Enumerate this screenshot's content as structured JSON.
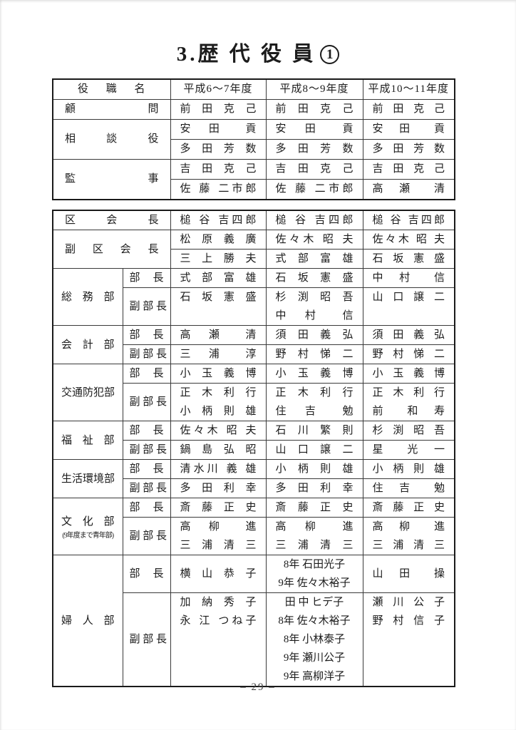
{
  "page": {
    "title_main": "3.歴 代 役 員",
    "title_number": "1",
    "page_number": "– 29 –"
  },
  "labels": {
    "bucho": "部 長",
    "fukubucho": "副 部 長"
  },
  "table1": {
    "headers": {
      "role": "役 職 名",
      "y1": "平成6〜7年度",
      "y2": "平成8〜9年度",
      "y3": "平成10〜11年度"
    },
    "komon": {
      "role": "顧 問",
      "n1": "前 田 克 己",
      "n2": "前 田 克 己",
      "n3": "前 田 克 己"
    },
    "sodan": {
      "role": "相 談 役",
      "r1": {
        "n1": "安 田　貢",
        "n2": "安 田　貢",
        "n3": "安 田　貢"
      },
      "r2": {
        "n1": "多 田 芳 数",
        "n2": "多 田 芳 数",
        "n3": "多 田 芳 数"
      }
    },
    "kanji": {
      "role": "監 事",
      "r1": {
        "n1": "吉 田 克 己",
        "n2": "吉 田 克 己",
        "n3": "吉 田 克 己"
      },
      "r2": {
        "n1": "佐 藤 二市郎",
        "n2": "佐 藤 二市郎",
        "n3": "高 瀬　清"
      }
    }
  },
  "table2": {
    "kukaicho": {
      "role": "区 会 長",
      "n1": "槌 谷 吉四郎",
      "n2": "槌 谷 吉四郎",
      "n3": "槌 谷 吉四郎"
    },
    "fukukukaicho": {
      "role": "副 区 会 長",
      "r1": {
        "n1": "松 原 義 廣",
        "n2": "佐々木 昭 夫",
        "n3": "佐々木 昭 夫"
      },
      "r2": {
        "n1": "三 上 勝 夫",
        "n2": "式 部 富 雄",
        "n3": "石 坂 憲 盛"
      }
    },
    "somu": {
      "dept": "総 務 部",
      "bucho": {
        "n1": "式 部 富 雄",
        "n2": "石 坂 憲 盛",
        "n3": "中 村　信"
      },
      "fuku": {
        "n1": [
          "石 坂 憲 盛"
        ],
        "n2": [
          "杉 渕 昭 吾",
          "中 村　信"
        ],
        "n3": [
          "山 口 譲 二"
        ]
      }
    },
    "kaikei": {
      "dept": "会 計 部",
      "bucho": {
        "n1": "高 瀬　清",
        "n2": "須 田 義 弘",
        "n3": "須 田 義 弘"
      },
      "fuku": {
        "n1": "三 浦　淳",
        "n2": "野 村 悌 二",
        "n3": "野 村 悌 二"
      }
    },
    "kotsubohan": {
      "dept": "交通防犯部",
      "bucho": {
        "n1": "小 玉 義 博",
        "n2": "小 玉 義 博",
        "n3": "小 玉 義 博"
      },
      "fuku": {
        "n1": [
          "正 木 利 行",
          "小 柄 則 雄"
        ],
        "n2": [
          "正 木 利 行",
          "住 吉　勉"
        ],
        "n3": [
          "正 木 利 行",
          "前　和 寿"
        ]
      }
    },
    "fukushi": {
      "dept": "福 祉 部",
      "bucho": {
        "n1": "佐々木 昭 夫",
        "n2": "石 川 繁 則",
        "n3": "杉 渕 昭 吾"
      },
      "fuku": {
        "n1": "鍋 島 弘 昭",
        "n2": "山 口 譲 二",
        "n3": "星　光 一"
      }
    },
    "seikatsu": {
      "dept": "生活環境部",
      "bucho": {
        "n1": "清水川 義 雄",
        "n2": "小 柄 則 雄",
        "n3": "小 柄 則 雄"
      },
      "fuku": {
        "n1": "多 田 利 幸",
        "n2": "多 田 利 幸",
        "n3": "住 吉　勉"
      }
    },
    "bunka": {
      "dept": "文 化 部",
      "dept_note": "(9年度まで青年部)",
      "bucho": {
        "n1": "斎 藤 正 史",
        "n2": "斎 藤 正 史",
        "n3": "斎 藤 正 史"
      },
      "fuku": {
        "n1": [
          "高 柳　進",
          "三 浦 清 三"
        ],
        "n2": [
          "高 柳　進",
          "三 浦 清 三"
        ],
        "n3": [
          "高 柳　進",
          "三 浦 清 三"
        ]
      }
    },
    "fujin": {
      "dept": "婦 人 部",
      "bucho": {
        "n1": "横 山 恭 子",
        "n2": [
          "8年 石田光子",
          "9年 佐々木裕子"
        ],
        "n3": "山 田　操"
      },
      "fuku": {
        "n1": [
          "加 納 秀 子",
          "永 江 つね子"
        ],
        "n2": [
          "田 中 ヒデ子",
          "8年 佐々木裕子",
          "8年 小林泰子",
          "9年 瀬川公子",
          "9年 高柳洋子"
        ],
        "n3": [
          "瀬 川 公 子",
          "野 村 信 子"
        ]
      }
    }
  }
}
